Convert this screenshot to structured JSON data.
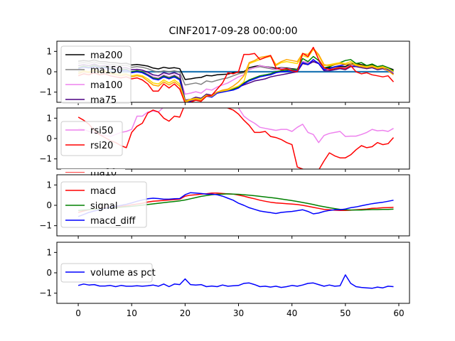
{
  "figure": {
    "title": "CINF2017-09-28 00:00:00"
  },
  "chart_data": [
    {
      "type": "line",
      "panel": "moving-averages",
      "xlim": [
        -4,
        62
      ],
      "ylim": [
        -1.5,
        1.5
      ],
      "yticks": [
        -1,
        0,
        1
      ],
      "legend": "upper-left",
      "legend_entries": [
        "ma200",
        "ma150",
        "ma100",
        "ma75"
      ],
      "series": [
        {
          "name": "",
          "color": "#1f77b4",
          "x": [
            0,
            59
          ],
          "y": [
            0,
            0
          ]
        },
        {
          "name": "ma200",
          "color": "#000000",
          "y": [
            0.52,
            0.55,
            0.52,
            0.58,
            0.5,
            0.5,
            0.45,
            0.44,
            0.4,
            0.42,
            0.33,
            0.36,
            0.32,
            0.28,
            0.18,
            0.14,
            0.22,
            0.17,
            0.2,
            0.15,
            -0.38,
            -0.35,
            -0.3,
            -0.28,
            -0.18,
            -0.2,
            -0.15,
            -0.13,
            -0.12,
            -0.05,
            -0.03,
            0.0,
            0.2,
            0.26,
            0.3,
            0.25,
            0.22,
            0.17,
            0.2,
            0.18,
            0.15,
            0.12,
            0.5,
            0.45,
            0.52,
            0.45,
            0.2,
            0.2,
            0.22,
            0.25,
            0.25,
            0.4,
            0.4,
            0.35,
            0.3,
            0.35,
            0.25,
            0.3,
            0.2,
            0.1
          ]
        },
        {
          "name": "ma150",
          "color": "#808080",
          "y": [
            0.42,
            0.45,
            0.42,
            0.48,
            0.4,
            0.4,
            0.35,
            0.33,
            0.3,
            0.32,
            0.22,
            0.25,
            0.22,
            0.15,
            0.05,
            -0.02,
            0.05,
            0.0,
            0.05,
            -0.02,
            -0.65,
            -0.6,
            -0.55,
            -0.62,
            -0.45,
            -0.5,
            -0.42,
            -0.35,
            -0.3,
            -0.2,
            -0.1,
            -0.05,
            0.12,
            0.2,
            0.25,
            0.2,
            0.15,
            0.1,
            0.15,
            0.12,
            0.1,
            0.08,
            0.45,
            0.4,
            0.5,
            0.4,
            0.15,
            0.15,
            0.2,
            0.22,
            0.2,
            0.35,
            0.35,
            0.3,
            0.25,
            0.3,
            0.2,
            0.25,
            0.15,
            0.05
          ]
        },
        {
          "name": "ma100",
          "color": "#ee82ee",
          "y": [
            0.15,
            0.25,
            0.18,
            0.3,
            0.2,
            0.22,
            0.15,
            0.1,
            0.05,
            0.1,
            0.0,
            0.05,
            0.0,
            -0.1,
            -0.25,
            -0.3,
            -0.15,
            -0.25,
            -0.15,
            -0.3,
            -1.1,
            -1.05,
            -0.98,
            -1.05,
            -0.85,
            -0.9,
            -0.75,
            -0.65,
            -0.55,
            -0.4,
            -0.25,
            -0.15,
            0.1,
            0.2,
            0.3,
            0.25,
            0.2,
            0.1,
            0.18,
            0.15,
            0.12,
            0.08,
            0.5,
            0.45,
            0.55,
            0.45,
            0.1,
            0.12,
            0.15,
            0.2,
            0.18,
            0.3,
            0.3,
            0.25,
            0.2,
            0.25,
            0.15,
            0.2,
            0.1,
            -0.05
          ]
        },
        {
          "name": "ma75",
          "color": "#4b0082",
          "y": [
            0.3,
            0.35,
            0.3,
            0.38,
            0.28,
            0.3,
            0.25,
            0.2,
            0.18,
            0.2,
            0.1,
            0.12,
            0.08,
            -0.02,
            -0.15,
            -0.2,
            -0.05,
            -0.12,
            -0.05,
            -0.15,
            -1.4,
            -1.35,
            -1.25,
            -1.3,
            -1.1,
            -1.15,
            -1.0,
            -0.95,
            -0.9,
            -0.85,
            -0.75,
            -0.65,
            -0.55,
            -0.45,
            -0.4,
            -0.35,
            -0.25,
            -0.2,
            -0.15,
            -0.1,
            -0.05,
            0.0,
            0.4,
            0.35,
            0.5,
            0.4,
            0.05,
            0.05,
            0.1,
            0.15,
            0.1,
            0.25,
            0.25,
            0.2,
            0.15,
            0.2,
            0.1,
            0.15,
            0.05,
            -0.1
          ]
        },
        {
          "name": "",
          "color": "#008000",
          "y": [
            0.2,
            0.28,
            0.22,
            0.32,
            0.22,
            0.25,
            0.18,
            0.12,
            0.1,
            0.12,
            0.0,
            0.05,
            0.0,
            -0.15,
            -0.3,
            -0.35,
            -0.2,
            -0.3,
            -0.2,
            -0.35,
            -1.45,
            -1.4,
            -1.3,
            -1.35,
            -1.15,
            -1.2,
            -1.0,
            -0.95,
            -0.92,
            -0.85,
            -0.75,
            -0.55,
            -0.4,
            -0.3,
            -0.2,
            -0.15,
            -0.1,
            0.0,
            0.05,
            0.08,
            0.1,
            0.12,
            0.65,
            0.5,
            0.75,
            0.55,
            0.2,
            0.25,
            0.35,
            0.45,
            0.55,
            0.6,
            0.4,
            0.45,
            0.3,
            0.38,
            0.25,
            0.3,
            0.2,
            0.05
          ]
        },
        {
          "name": "",
          "color": "#0000ff",
          "y": [
            0.15,
            0.22,
            0.18,
            0.25,
            0.18,
            0.2,
            0.12,
            0.1,
            0.05,
            0.08,
            -0.05,
            0.0,
            -0.05,
            -0.18,
            -0.35,
            -0.4,
            -0.25,
            -0.35,
            -0.25,
            -0.4,
            -1.5,
            -1.45,
            -1.35,
            -1.4,
            -1.2,
            -1.25,
            -1.05,
            -1.0,
            -0.95,
            -0.9,
            -0.8,
            -0.6,
            -0.45,
            -0.35,
            -0.25,
            -0.2,
            -0.15,
            -0.05,
            0.0,
            0.02,
            0.05,
            0.05,
            0.45,
            0.35,
            0.6,
            0.4,
            0.1,
            0.15,
            0.25,
            0.3,
            0.35,
            0.4,
            0.25,
            0.3,
            0.2,
            0.25,
            0.15,
            0.2,
            0.1,
            0.0
          ]
        },
        {
          "name": "",
          "color": "#ffd700",
          "y": [
            -0.02,
            0.05,
            0.0,
            0.1,
            0.0,
            0.05,
            -0.05,
            -0.1,
            -0.12,
            -0.1,
            -0.2,
            -0.15,
            -0.2,
            -0.35,
            -0.55,
            -0.6,
            -0.4,
            -0.55,
            -0.4,
            -0.6,
            -1.45,
            -1.35,
            -1.3,
            -1.35,
            -1.15,
            -1.2,
            -1.0,
            -0.95,
            -0.9,
            -0.8,
            -0.7,
            -0.5,
            0.4,
            0.5,
            0.6,
            0.7,
            0.75,
            0.3,
            0.45,
            0.5,
            0.45,
            0.4,
            0.8,
            0.7,
            1.1,
            0.8,
            0.3,
            0.35,
            0.4,
            0.45,
            0.4,
            0.5,
            0.35,
            0.3,
            0.25,
            0.3,
            0.2,
            0.25,
            0.15,
            0.0
          ]
        },
        {
          "name": "",
          "color": "#ffa500",
          "y": [
            -0.1,
            0.0,
            -0.05,
            0.05,
            -0.05,
            0.0,
            -0.1,
            -0.15,
            -0.2,
            -0.15,
            -0.25,
            -0.2,
            -0.25,
            -0.45,
            -0.65,
            -0.7,
            -0.5,
            -0.65,
            -0.5,
            -0.7,
            -1.5,
            -1.4,
            -1.35,
            -1.4,
            -1.2,
            -1.2,
            -1.0,
            -0.9,
            -0.85,
            -0.7,
            -0.5,
            -0.2,
            0.45,
            0.55,
            0.7,
            0.75,
            0.8,
            0.35,
            0.5,
            0.6,
            0.55,
            0.5,
            0.9,
            0.85,
            1.15,
            0.85,
            0.35,
            0.3,
            0.35,
            0.4,
            0.35,
            0.4,
            0.3,
            0.25,
            0.2,
            0.25,
            0.15,
            0.2,
            0.05,
            -0.15
          ]
        },
        {
          "name": "",
          "color": "#ff0000",
          "y": [
            -0.2,
            -0.1,
            -0.15,
            -0.05,
            -0.15,
            -0.1,
            -0.2,
            -0.25,
            -0.3,
            -0.25,
            -0.35,
            -0.3,
            -0.4,
            -0.6,
            -0.95,
            -0.95,
            -0.6,
            -0.8,
            -0.6,
            -0.85,
            -1.55,
            -1.5,
            -1.4,
            -1.45,
            -1.2,
            -1.15,
            -0.85,
            -0.55,
            -0.05,
            -0.1,
            0.0,
            0.85,
            0.85,
            0.9,
            0.6,
            0.7,
            0.8,
            0.2,
            0.1,
            0.15,
            0.05,
            0.0,
            0.9,
            0.75,
            1.2,
            0.6,
            0.2,
            0.1,
            0.15,
            0.2,
            0.15,
            0.3,
            0.0,
            -0.1,
            -0.05,
            -0.15,
            -0.2,
            -0.25,
            -0.2,
            -0.5
          ]
        }
      ]
    },
    {
      "type": "line",
      "panel": "rsi",
      "xlim": [
        -4,
        62
      ],
      "ylim": [
        -1.5,
        1.5
      ],
      "yticks": [
        -1,
        0,
        1
      ],
      "legend": "center-left",
      "legend_entries": [
        "rsi50",
        "rsi20"
      ],
      "cut_off_legend_text": "ma10",
      "series": [
        {
          "name": "rsi50",
          "color": "#ee82ee",
          "y": [
            0.5,
            0.45,
            0.35,
            0.3,
            0.2,
            0.15,
            0.1,
            0.2,
            0.3,
            0.35,
            0.45,
            1.1,
            1.1,
            1.3,
            1.35,
            1.3,
            1.55,
            1.6,
            1.7,
            1.8,
            1.85,
            1.9,
            1.95,
            2.0,
            1.95,
            1.9,
            1.85,
            1.8,
            1.7,
            1.6,
            1.5,
            1.1,
            0.9,
            0.75,
            0.55,
            0.5,
            0.45,
            0.4,
            0.45,
            0.45,
            0.35,
            0.55,
            0.7,
            0.3,
            0.2,
            -0.2,
            0.15,
            0.25,
            0.3,
            0.35,
            0.1,
            0.12,
            0.12,
            0.2,
            0.3,
            0.45,
            0.38,
            0.4,
            0.35,
            0.5
          ]
        },
        {
          "name": "rsi20",
          "color": "#ff0000",
          "y": [
            1.05,
            0.9,
            0.7,
            0.4,
            0.2,
            0.05,
            -0.1,
            -0.2,
            -0.35,
            -0.45,
            0.3,
            0.6,
            0.75,
            1.25,
            1.4,
            1.3,
            1.0,
            0.85,
            1.1,
            1.05,
            1.7,
            1.9,
            2.0,
            2.1,
            2.0,
            1.9,
            1.8,
            1.6,
            1.5,
            1.4,
            1.2,
            0.9,
            0.65,
            0.3,
            0.3,
            0.35,
            0.1,
            0.05,
            -0.05,
            -0.2,
            -0.3,
            -1.4,
            -1.5,
            -1.6,
            -1.65,
            -1.55,
            -1.1,
            -0.7,
            -0.85,
            -0.95,
            -0.95,
            -0.8,
            -0.55,
            -0.35,
            -0.45,
            -0.4,
            -0.2,
            -0.3,
            -0.25,
            0.05
          ]
        }
      ]
    },
    {
      "type": "line",
      "panel": "macd",
      "xlim": [
        -4,
        62
      ],
      "ylim": [
        -1.5,
        1.5
      ],
      "yticks": [
        -1,
        0,
        1
      ],
      "legend": "upper-left",
      "legend_entries": [
        "macd",
        "signal",
        "macd_diff"
      ],
      "series": [
        {
          "name": "macd",
          "color": "#ff0000",
          "y": [
            -0.35,
            -0.28,
            -0.22,
            -0.18,
            -0.14,
            -0.12,
            -0.1,
            -0.08,
            -0.05,
            -0.02,
            0.02,
            0.06,
            0.1,
            0.16,
            0.2,
            0.22,
            0.24,
            0.26,
            0.28,
            0.3,
            0.45,
            0.5,
            0.52,
            0.55,
            0.57,
            0.6,
            0.6,
            0.58,
            0.56,
            0.55,
            0.5,
            0.45,
            0.38,
            0.32,
            0.25,
            0.2,
            0.15,
            0.12,
            0.1,
            0.08,
            0.06,
            0.04,
            0.0,
            -0.05,
            -0.1,
            -0.15,
            -0.2,
            -0.22,
            -0.24,
            -0.25,
            -0.25,
            -0.24,
            -0.22,
            -0.2,
            -0.18,
            -0.15,
            -0.14,
            -0.12,
            -0.11,
            -0.1
          ]
        },
        {
          "name": "signal",
          "color": "#008000",
          "y": [
            -0.25,
            -0.23,
            -0.21,
            -0.19,
            -0.17,
            -0.15,
            -0.13,
            -0.11,
            -0.09,
            -0.07,
            -0.05,
            -0.02,
            0.01,
            0.04,
            0.07,
            0.1,
            0.13,
            0.16,
            0.19,
            0.22,
            0.26,
            0.32,
            0.38,
            0.44,
            0.48,
            0.52,
            0.54,
            0.55,
            0.56,
            0.55,
            0.54,
            0.52,
            0.5,
            0.47,
            0.44,
            0.41,
            0.38,
            0.35,
            0.31,
            0.27,
            0.23,
            0.19,
            0.14,
            0.09,
            0.04,
            -0.02,
            -0.07,
            -0.12,
            -0.16,
            -0.2,
            -0.22,
            -0.23,
            -0.23,
            -0.23,
            -0.22,
            -0.21,
            -0.21,
            -0.2,
            -0.2,
            -0.19
          ]
        },
        {
          "name": "macd_diff",
          "color": "#0000ff",
          "y": [
            -0.55,
            -0.45,
            -0.35,
            -0.28,
            -0.22,
            -0.15,
            -0.1,
            -0.05,
            0.0,
            0.05,
            0.12,
            0.2,
            0.26,
            0.32,
            0.35,
            0.33,
            0.3,
            0.3,
            0.32,
            0.33,
            0.52,
            0.62,
            0.6,
            0.58,
            0.55,
            0.55,
            0.52,
            0.45,
            0.35,
            0.25,
            0.1,
            0.0,
            -0.12,
            -0.2,
            -0.28,
            -0.32,
            -0.36,
            -0.4,
            -0.35,
            -0.32,
            -0.3,
            -0.26,
            -0.22,
            -0.3,
            -0.42,
            -0.38,
            -0.3,
            -0.25,
            -0.22,
            -0.22,
            -0.18,
            -0.12,
            -0.08,
            -0.02,
            0.03,
            0.08,
            0.12,
            0.15,
            0.2,
            0.25
          ]
        }
      ]
    },
    {
      "type": "line",
      "panel": "volume",
      "xlim": [
        -4,
        62
      ],
      "ylim": [
        -1.5,
        1.5
      ],
      "yticks": [
        -1,
        0,
        1
      ],
      "xticks": [
        0,
        10,
        20,
        30,
        40,
        50,
        60
      ],
      "legend": "center-left",
      "legend_entries": [
        "volume as pct"
      ],
      "series": [
        {
          "name": "volume as pct",
          "color": "#0000ff",
          "y": [
            -0.62,
            -0.55,
            -0.6,
            -0.58,
            -0.65,
            -0.65,
            -0.62,
            -0.68,
            -0.62,
            -0.66,
            -0.66,
            -0.64,
            -0.66,
            -0.64,
            -0.6,
            -0.66,
            -0.55,
            -0.68,
            -0.55,
            -0.58,
            -0.3,
            -0.58,
            -0.6,
            -0.58,
            -0.68,
            -0.65,
            -0.68,
            -0.6,
            -0.66,
            -0.64,
            -0.62,
            -0.52,
            -0.5,
            -0.58,
            -0.68,
            -0.66,
            -0.7,
            -0.66,
            -0.72,
            -0.68,
            -0.62,
            -0.66,
            -0.6,
            -0.52,
            -0.5,
            -0.58,
            -0.66,
            -0.6,
            -0.66,
            -0.64,
            -0.1,
            -0.52,
            -0.68,
            -0.72,
            -0.74,
            -0.76,
            -0.7,
            -0.74,
            -0.66,
            -0.68
          ]
        }
      ]
    }
  ]
}
